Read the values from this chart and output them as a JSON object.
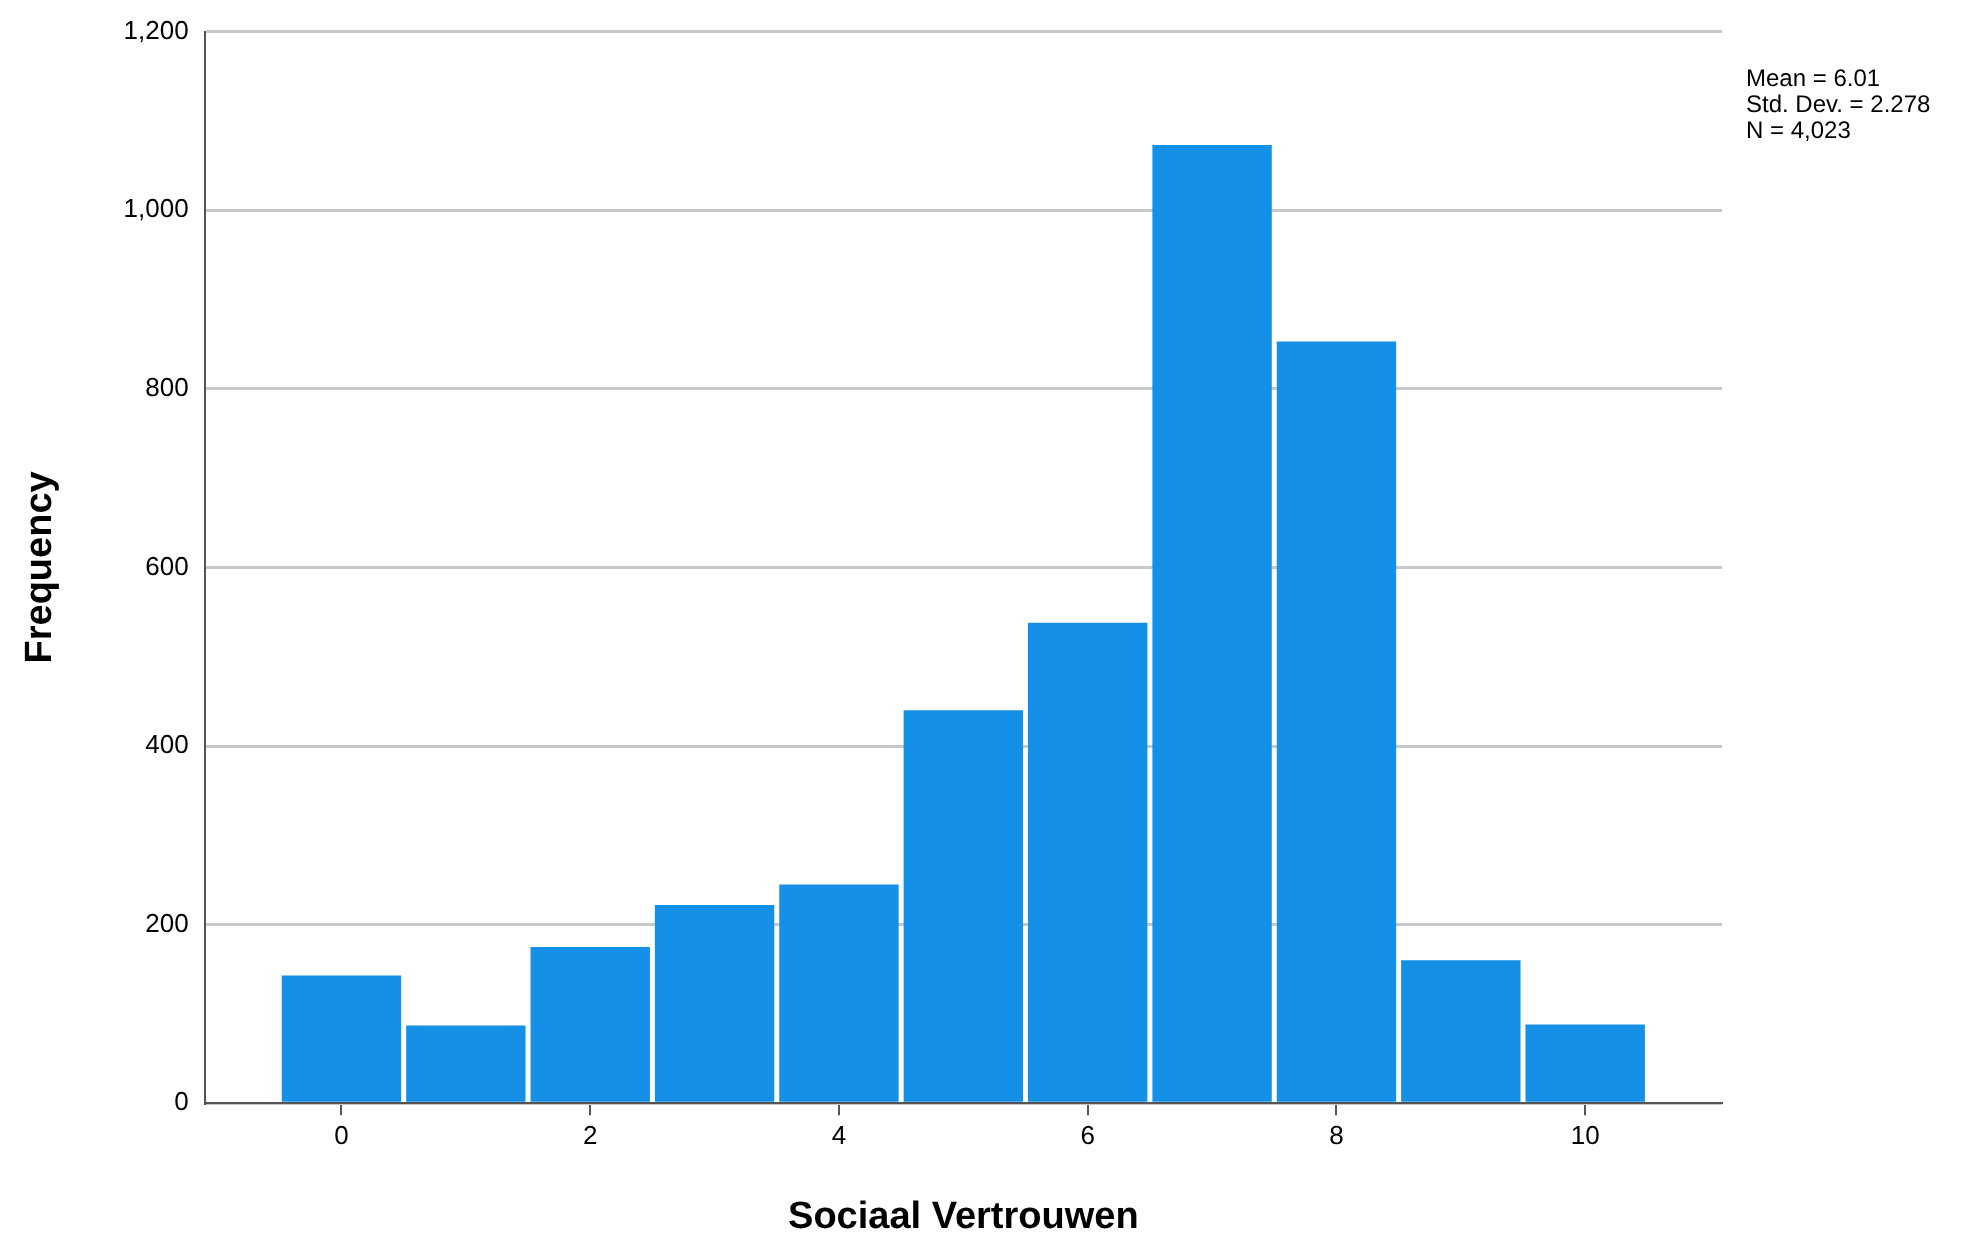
{
  "chart_data": {
    "type": "histogram",
    "xlabel": "Sociaal Vertrouwen",
    "ylabel": "Frequency",
    "bins": [
      -0.5,
      0.5,
      1.5,
      2.5,
      3.5,
      4.5,
      5.5,
      6.5,
      7.5,
      8.5,
      9.5,
      10.5
    ],
    "values": [
      143,
      87,
      175,
      222,
      245,
      440,
      538,
      1073,
      853,
      160,
      88
    ],
    "color": "#1490e6",
    "xlim": [
      -1.1,
      11.1
    ],
    "xticks": [
      0,
      2,
      4,
      6,
      8,
      10
    ],
    "ylim": [
      0,
      1200
    ],
    "yticks": [
      0,
      {
        "value": 200,
        "label": "200"
      },
      {
        "value": 400,
        "label": "400"
      },
      {
        "value": 600,
        "label": "600"
      },
      {
        "value": 800,
        "label": "800"
      },
      {
        "value": 1000,
        "label": "1,000"
      },
      {
        "value": 1200,
        "label": "1,200"
      }
    ],
    "grid": "y",
    "legend": false,
    "annotations": [
      "Mean = 6.01",
      "Std. Dev. = 2.278",
      "N = 4,023"
    ]
  }
}
